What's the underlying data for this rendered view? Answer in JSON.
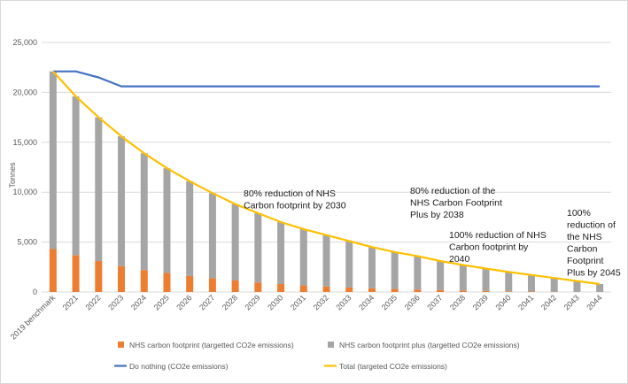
{
  "chart_data": {
    "type": "bar",
    "title": "",
    "ylabel": "Tonnes",
    "xlabel": "",
    "ylim": [
      0,
      25000
    ],
    "yticks": [
      0,
      5000,
      10000,
      15000,
      20000,
      25000
    ],
    "ytick_labels": [
      "0",
      "5,000",
      "10,000",
      "15,000",
      "20,000",
      "25,000"
    ],
    "grid": "horizontal",
    "legend_position": "bottom",
    "categories": [
      "2019 benchmark",
      "2021",
      "2022",
      "2023",
      "2024",
      "2025",
      "2026",
      "2027",
      "2028",
      "2029",
      "2030",
      "2031",
      "2032",
      "2033",
      "2034",
      "2035",
      "2036",
      "2037",
      "2038",
      "2039",
      "2040",
      "2041",
      "2042",
      "2043",
      "2044"
    ],
    "series": [
      {
        "name": "NHS carbon footprint (targetted CO2e emissions)",
        "kind": "bar",
        "color": "#ed7d31",
        "values": [
          4300,
          3700,
          3100,
          2600,
          2200,
          1900,
          1600,
          1400,
          1150,
          950,
          800,
          650,
          550,
          450,
          380,
          300,
          250,
          200,
          150,
          100,
          70,
          50,
          30,
          20,
          10
        ]
      },
      {
        "name": "NHS carbon footprint plus (targetted CO2e emissions)",
        "kind": "bar",
        "color": "#a5a5a5",
        "values": [
          17800,
          15900,
          14400,
          13000,
          11700,
          10500,
          9500,
          8500,
          7650,
          6950,
          6200,
          5650,
          5150,
          4650,
          4100,
          3700,
          3350,
          2900,
          2550,
          2250,
          1930,
          1650,
          1370,
          1080,
          790
        ]
      },
      {
        "name": "Do nothing (CO2e emissions)",
        "kind": "line",
        "color": "#4472c4",
        "values": [
          22100,
          22100,
          21500,
          20600,
          20600,
          20600,
          20600,
          20600,
          20600,
          20600,
          20600,
          20600,
          20600,
          20600,
          20600,
          20600,
          20600,
          20600,
          20600,
          20600,
          20600,
          20600,
          20600,
          20600,
          20600
        ]
      },
      {
        "name": "Total (targeted CO2e emissions)",
        "kind": "line",
        "color": "#ffc000",
        "values": [
          22100,
          19600,
          17500,
          15600,
          13900,
          12400,
          11100,
          9900,
          8800,
          7900,
          7000,
          6300,
          5700,
          5100,
          4500,
          4000,
          3600,
          3100,
          2700,
          2350,
          2000,
          1700,
          1400,
          1100,
          800
        ]
      }
    ],
    "annotations": [
      {
        "lines": [
          "80% reduction of NHS",
          "Carbon footprint by 2030"
        ]
      },
      {
        "lines": [
          "80% reduction of the",
          "NHS Carbon Footprint",
          "Plus by 2038"
        ]
      },
      {
        "lines": [
          "100% reduction of NHS",
          "Carbon footprint by",
          "2040"
        ]
      },
      {
        "lines": [
          "100%",
          "reduction of",
          "the NHS",
          "Carbon",
          "Footprint",
          "Plus by 2045"
        ]
      }
    ]
  }
}
